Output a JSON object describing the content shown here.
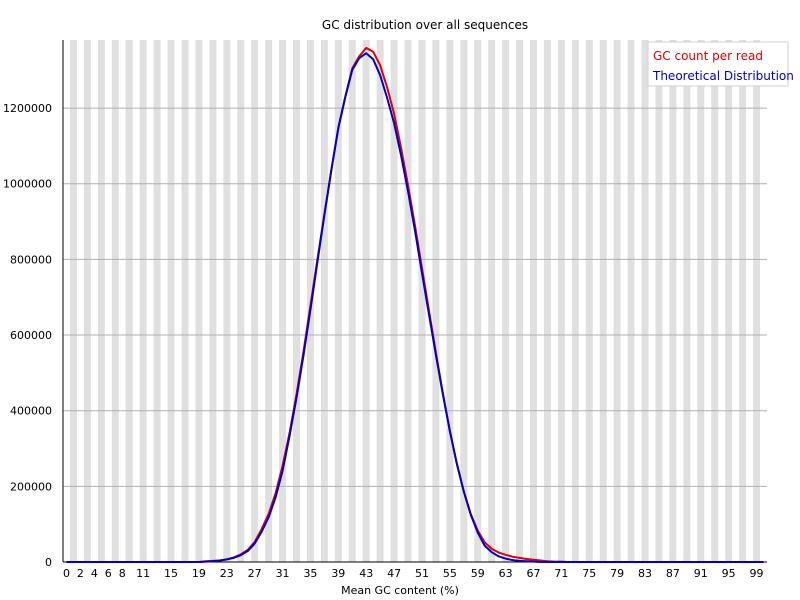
{
  "chart_data": {
    "type": "line",
    "title": "GC distribution over all sequences",
    "xlabel": "Mean GC content (%)",
    "ylabel": "",
    "xlim": [
      0,
      100
    ],
    "ylim": [
      0,
      1380000
    ],
    "grid": true,
    "legend_placement": "top-right",
    "colors": {
      "gc_count": "#e00000",
      "theoretical": "#0000cc",
      "band": "#e0e0e0",
      "gridline": "#b0b0b0"
    },
    "y_ticks": [
      0,
      200000,
      400000,
      600000,
      800000,
      1000000,
      1200000
    ],
    "y_tick_labels": [
      "0",
      "200000",
      "400000",
      "600000",
      "800000",
      "1000000",
      "1200000"
    ],
    "x_tick_labels": [
      "0",
      "2",
      "4",
      "6",
      "8",
      "11",
      "15",
      "19",
      "23",
      "27",
      "31",
      "35",
      "39",
      "43",
      "47",
      "51",
      "55",
      "59",
      "63",
      "67",
      "71",
      "75",
      "79",
      "83",
      "87",
      "91",
      "95",
      "99"
    ],
    "x_tick_values": [
      0,
      2,
      4,
      6,
      8,
      11,
      15,
      19,
      23,
      27,
      31,
      35,
      39,
      43,
      47,
      51,
      55,
      59,
      63,
      67,
      71,
      75,
      79,
      83,
      87,
      91,
      95,
      99
    ],
    "x": [
      0,
      1,
      2,
      3,
      4,
      5,
      6,
      7,
      8,
      9,
      10,
      11,
      12,
      13,
      14,
      15,
      16,
      17,
      18,
      19,
      20,
      21,
      22,
      23,
      24,
      25,
      26,
      27,
      28,
      29,
      30,
      31,
      32,
      33,
      34,
      35,
      36,
      37,
      38,
      39,
      40,
      41,
      42,
      43,
      44,
      45,
      46,
      47,
      48,
      49,
      50,
      51,
      52,
      53,
      54,
      55,
      56,
      57,
      58,
      59,
      60,
      61,
      62,
      63,
      64,
      65,
      66,
      67,
      68,
      69,
      70,
      71,
      72,
      73,
      74,
      75,
      76,
      77,
      78,
      79,
      80,
      81,
      82,
      83,
      84,
      85,
      86,
      87,
      88,
      89,
      90,
      91,
      92,
      93,
      94,
      95,
      96,
      97,
      98,
      99,
      100
    ],
    "series": [
      {
        "name": "GC count per read",
        "values": [
          0,
          0,
          0,
          0,
          0,
          0,
          0,
          0,
          0,
          0,
          0,
          0,
          0,
          0,
          0,
          0,
          0,
          0,
          0,
          0,
          2000,
          3000,
          4000,
          7000,
          12000,
          20000,
          32000,
          53000,
          87000,
          127000,
          182000,
          254000,
          341000,
          443000,
          556000,
          678000,
          800000,
          920000,
          1037000,
          1148000,
          1230000,
          1305000,
          1337000,
          1359000,
          1349000,
          1313000,
          1255000,
          1185000,
          1095000,
          996000,
          889000,
          777000,
          665000,
          553000,
          446000,
          347000,
          260000,
          187000,
          127000,
          83000,
          52000,
          35000,
          25000,
          19000,
          14000,
          11000,
          8000,
          6000,
          4000,
          2000,
          1000,
          1000,
          0,
          0,
          0,
          0,
          0,
          0,
          0,
          0,
          0,
          0,
          0,
          0,
          0,
          0,
          0,
          0,
          0,
          0,
          0,
          0,
          0,
          0,
          0,
          0,
          0,
          0,
          0,
          0,
          0
        ]
      },
      {
        "name": "Theoretical Distribution",
        "values": [
          0,
          0,
          0,
          0,
          0,
          0,
          0,
          0,
          0,
          0,
          0,
          0,
          0,
          0,
          0,
          0,
          0,
          0,
          0,
          0,
          1000,
          2000,
          4000,
          7000,
          11000,
          18000,
          29000,
          49000,
          80000,
          118000,
          171000,
          241000,
          333000,
          434000,
          546000,
          667000,
          793000,
          917000,
          1036000,
          1147000,
          1229000,
          1301000,
          1332000,
          1345000,
          1329000,
          1287000,
          1227000,
          1160000,
          1075000,
          980000,
          876000,
          764000,
          655000,
          547000,
          443000,
          346000,
          260000,
          186000,
          125000,
          78000,
          43000,
          26000,
          15000,
          9000,
          5000,
          3000,
          2000,
          1000,
          0,
          0,
          0,
          0,
          0,
          0,
          0,
          0,
          0,
          0,
          0,
          0,
          0,
          0,
          0,
          0,
          0,
          0,
          0,
          0,
          0,
          0,
          0,
          0,
          0,
          0,
          0,
          0,
          0,
          0,
          0,
          0,
          0
        ]
      }
    ]
  }
}
